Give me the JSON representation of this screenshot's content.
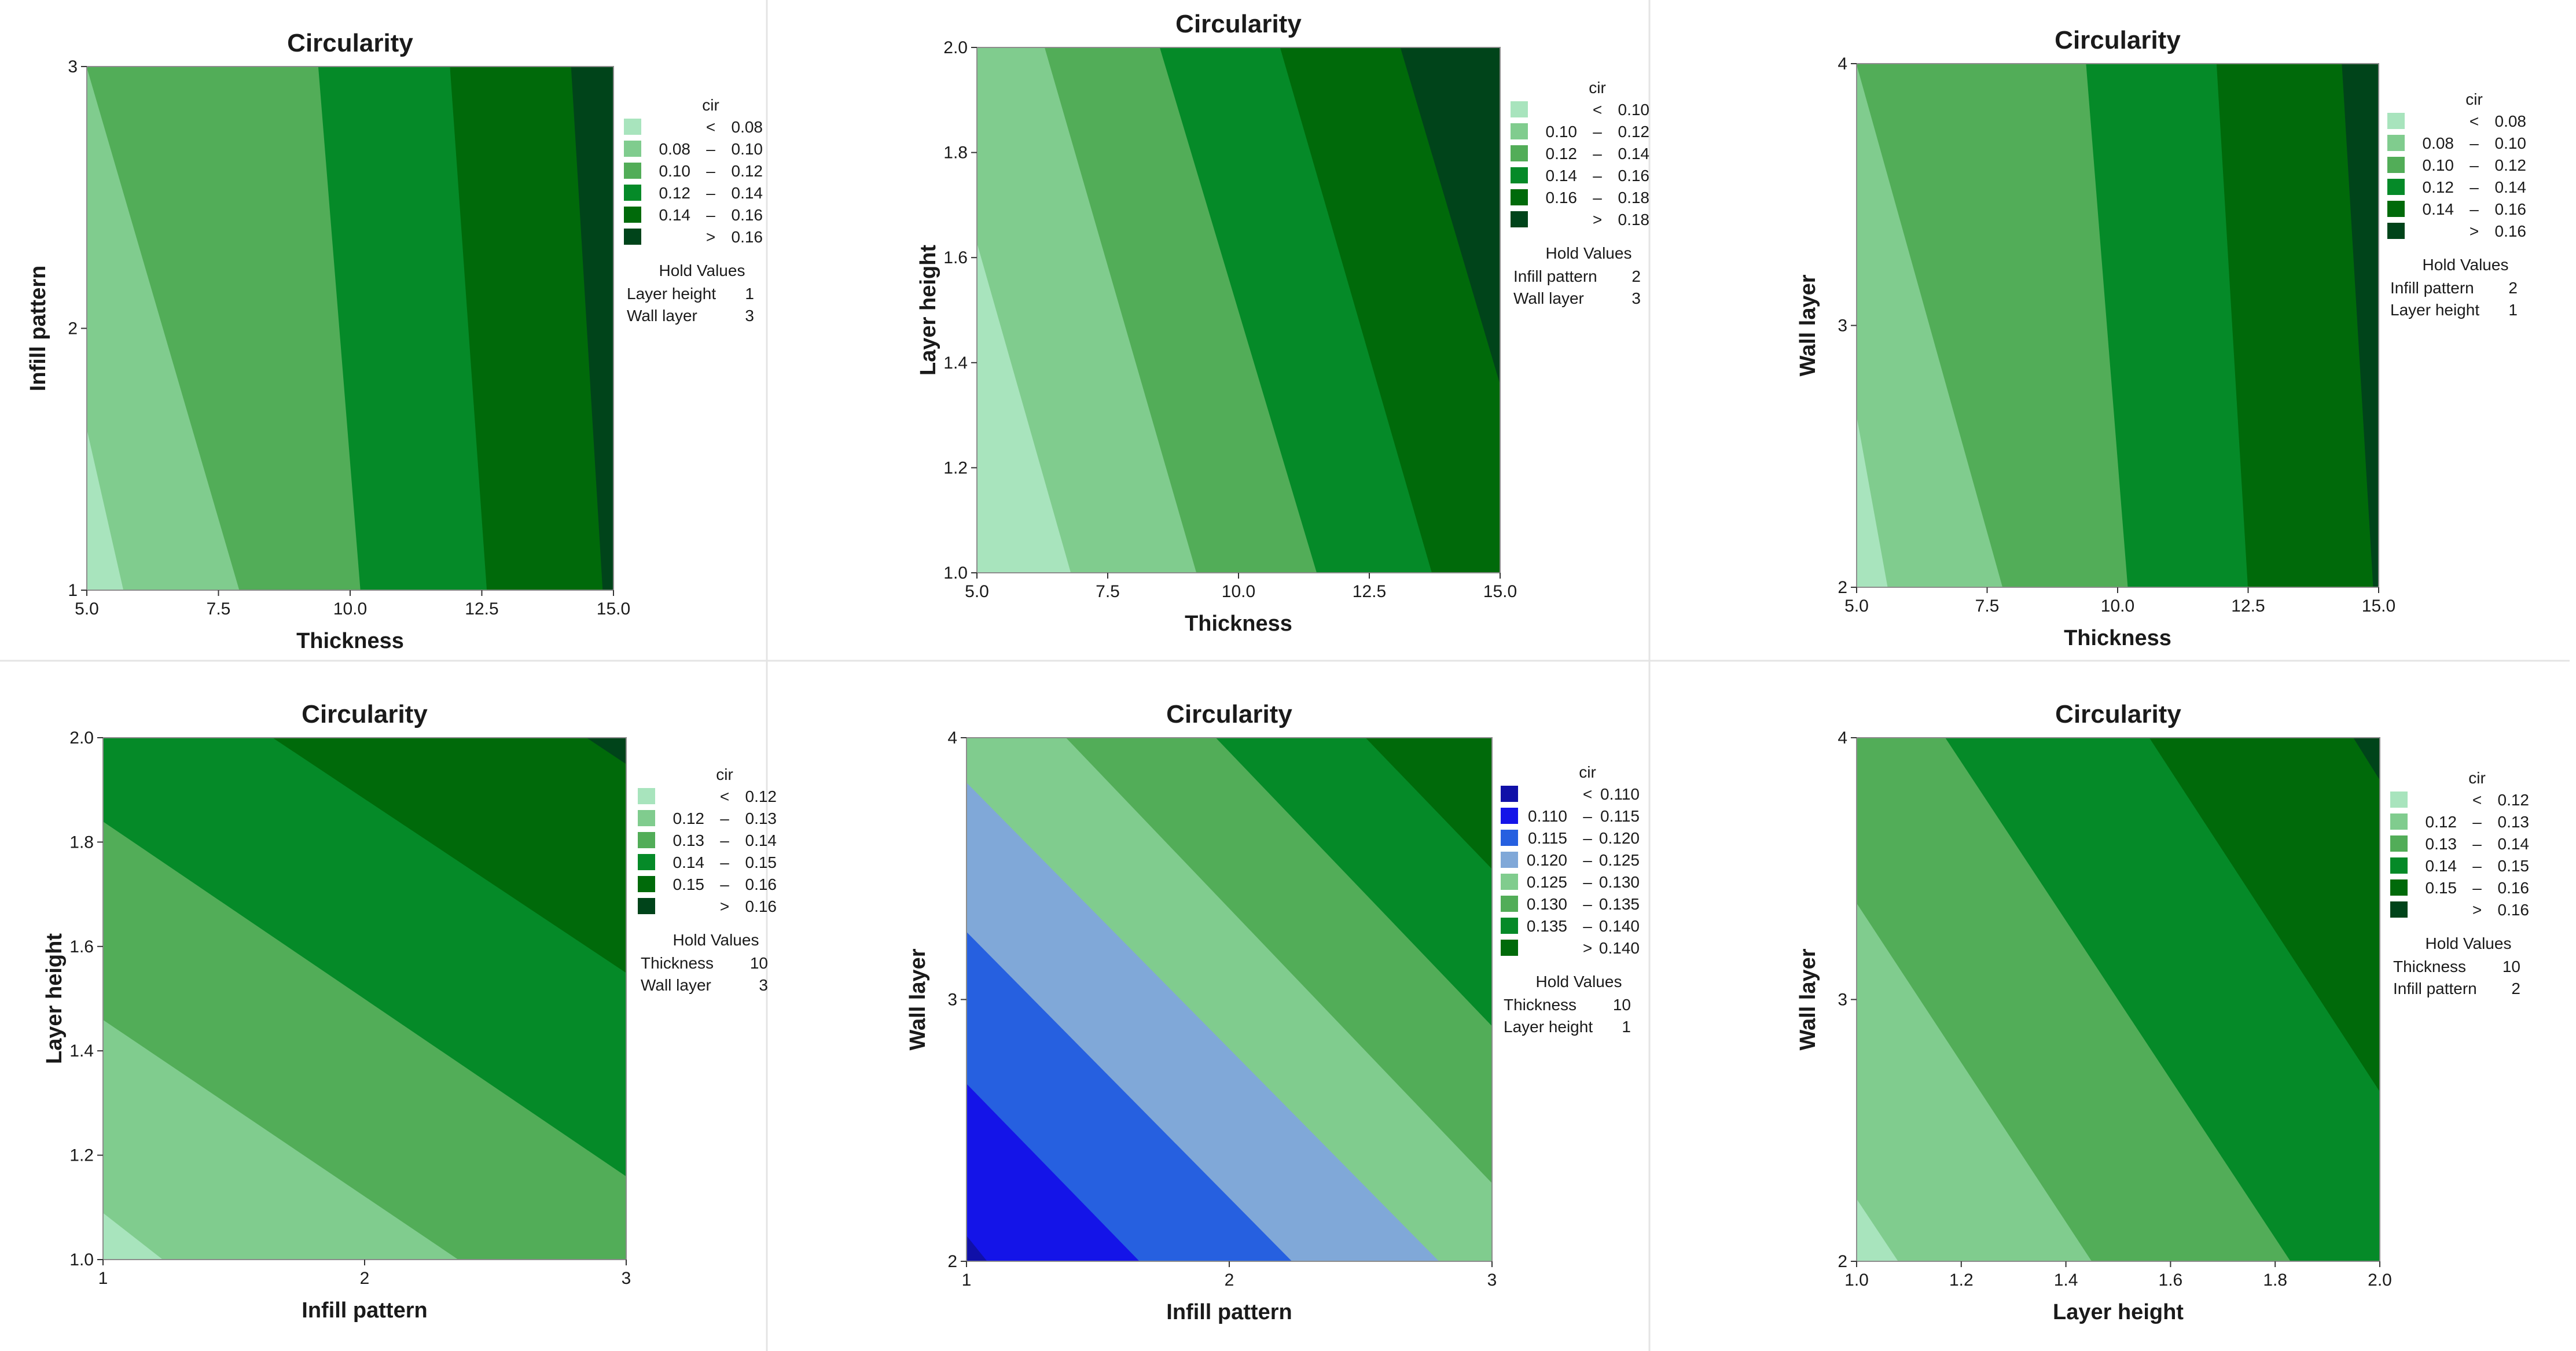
{
  "chart_data": [
    {
      "type": "contour",
      "title": "Circularity",
      "xlabel": "Thickness",
      "ylabel": "Infill pattern",
      "xlim": [
        5.0,
        15.0
      ],
      "ylim": [
        1,
        3
      ],
      "xticks": [
        "5.0",
        "7.5",
        "10.0",
        "12.5",
        "15.0"
      ],
      "yticks": [
        "1",
        "2",
        "3"
      ],
      "legend": {
        "title": "cir",
        "colors": [
          "#a8e4bd",
          "#80cc8e",
          "#52ad58",
          "#058a28",
          "#006a0a",
          "#00441a"
        ],
        "entries": [
          {
            "lo": "",
            "op": "<",
            "hi": "0.08"
          },
          {
            "lo": "0.08",
            "op": "–",
            "hi": "0.10"
          },
          {
            "lo": "0.10",
            "op": "–",
            "hi": "0.12"
          },
          {
            "lo": "0.12",
            "op": "–",
            "hi": "0.14"
          },
          {
            "lo": "0.14",
            "op": "–",
            "hi": "0.16"
          },
          {
            "lo": "",
            "op": ">",
            "hi": "0.16"
          }
        ]
      },
      "hold_title": "Hold Values",
      "hold_values": [
        {
          "name": "Layer height",
          "value": "1"
        },
        {
          "name": "Wall layer",
          "value": "3"
        }
      ],
      "boundaries": [
        [
          [
            5.0,
            1.62
          ],
          [
            5.7,
            1.0
          ]
        ],
        [
          [
            5.0,
            3.0
          ],
          [
            7.9,
            1.0
          ]
        ],
        [
          [
            9.4,
            3.0
          ],
          [
            10.2,
            1.0
          ]
        ],
        [
          [
            11.9,
            3.0
          ],
          [
            12.6,
            1.0
          ]
        ],
        [
          [
            14.2,
            3.0
          ],
          [
            14.8,
            1.0
          ]
        ]
      ]
    },
    {
      "type": "contour",
      "title": "Circularity",
      "xlabel": "Thickness",
      "ylabel": "Layer height",
      "xlim": [
        5.0,
        15.0
      ],
      "ylim": [
        1.0,
        2.0
      ],
      "xticks": [
        "5.0",
        "7.5",
        "10.0",
        "12.5",
        "15.0"
      ],
      "yticks": [
        "1.0",
        "1.2",
        "1.4",
        "1.6",
        "1.8",
        "2.0"
      ],
      "legend": {
        "title": "cir",
        "colors": [
          "#a8e4bd",
          "#80cc8e",
          "#52ad58",
          "#058a28",
          "#006a0a",
          "#00441a"
        ],
        "entries": [
          {
            "lo": "",
            "op": "<",
            "hi": "0.10"
          },
          {
            "lo": "0.10",
            "op": "–",
            "hi": "0.12"
          },
          {
            "lo": "0.12",
            "op": "–",
            "hi": "0.14"
          },
          {
            "lo": "0.14",
            "op": "–",
            "hi": "0.16"
          },
          {
            "lo": "0.16",
            "op": "–",
            "hi": "0.18"
          },
          {
            "lo": "",
            "op": ">",
            "hi": "0.18"
          }
        ]
      },
      "hold_title": "Hold Values",
      "hold_values": [
        {
          "name": "Infill pattern",
          "value": "2"
        },
        {
          "name": "Wall layer",
          "value": "3"
        }
      ],
      "boundaries": [
        [
          [
            5.0,
            1.63
          ],
          [
            6.8,
            1.0
          ]
        ],
        [
          [
            6.3,
            2.0
          ],
          [
            9.2,
            1.0
          ]
        ],
        [
          [
            8.5,
            2.0
          ],
          [
            11.5,
            1.0
          ]
        ],
        [
          [
            10.8,
            2.0
          ],
          [
            13.7,
            1.0
          ]
        ],
        [
          [
            13.1,
            2.0
          ],
          [
            15.0,
            1.36
          ]
        ]
      ]
    },
    {
      "type": "contour",
      "title": "Circularity",
      "xlabel": "Thickness",
      "ylabel": "Wall layer",
      "xlim": [
        5.0,
        15.0
      ],
      "ylim": [
        2,
        4
      ],
      "xticks": [
        "5.0",
        "7.5",
        "10.0",
        "12.5",
        "15.0"
      ],
      "yticks": [
        "2",
        "3",
        "4"
      ],
      "legend": {
        "title": "cir",
        "colors": [
          "#a8e4bd",
          "#80cc8e",
          "#52ad58",
          "#058a28",
          "#006a0a",
          "#00441a"
        ],
        "entries": [
          {
            "lo": "",
            "op": "<",
            "hi": "0.08"
          },
          {
            "lo": "0.08",
            "op": "–",
            "hi": "0.10"
          },
          {
            "lo": "0.10",
            "op": "–",
            "hi": "0.12"
          },
          {
            "lo": "0.12",
            "op": "–",
            "hi": "0.14"
          },
          {
            "lo": "0.14",
            "op": "–",
            "hi": "0.16"
          },
          {
            "lo": "",
            "op": ">",
            "hi": "0.16"
          }
        ]
      },
      "hold_title": "Hold Values",
      "hold_values": [
        {
          "name": "Infill pattern",
          "value": "2"
        },
        {
          "name": "Layer height",
          "value": "1"
        }
      ],
      "boundaries": [
        [
          [
            5.0,
            2.66
          ],
          [
            5.6,
            2.0
          ]
        ],
        [
          [
            5.0,
            4.0
          ],
          [
            7.8,
            2.0
          ]
        ],
        [
          [
            9.4,
            4.0
          ],
          [
            10.2,
            2.0
          ]
        ],
        [
          [
            11.9,
            4.0
          ],
          [
            12.5,
            2.0
          ]
        ],
        [
          [
            14.3,
            4.0
          ],
          [
            14.9,
            2.0
          ]
        ]
      ]
    },
    {
      "type": "contour",
      "title": "Circularity",
      "xlabel": "Infill pattern",
      "ylabel": "Layer height",
      "xlim": [
        1,
        3
      ],
      "ylim": [
        1.0,
        2.0
      ],
      "xticks": [
        "1",
        "2",
        "3"
      ],
      "yticks": [
        "1.0",
        "1.2",
        "1.4",
        "1.6",
        "1.8",
        "2.0"
      ],
      "legend": {
        "title": "cir",
        "colors": [
          "#a8e4bd",
          "#80cc8e",
          "#52ad58",
          "#058a28",
          "#006a0a",
          "#00441a"
        ],
        "entries": [
          {
            "lo": "",
            "op": "<",
            "hi": "0.12"
          },
          {
            "lo": "0.12",
            "op": "–",
            "hi": "0.13"
          },
          {
            "lo": "0.13",
            "op": "–",
            "hi": "0.14"
          },
          {
            "lo": "0.14",
            "op": "–",
            "hi": "0.15"
          },
          {
            "lo": "0.15",
            "op": "–",
            "hi": "0.16"
          },
          {
            "lo": "",
            "op": ">",
            "hi": "0.16"
          }
        ]
      },
      "hold_title": "Hold Values",
      "hold_values": [
        {
          "name": "Thickness",
          "value": "10"
        },
        {
          "name": "Wall layer",
          "value": "3"
        }
      ],
      "boundaries": [
        [
          [
            1.0,
            1.09
          ],
          [
            1.23,
            1.0
          ]
        ],
        [
          [
            1.0,
            1.46
          ],
          [
            2.36,
            1.0
          ]
        ],
        [
          [
            1.0,
            1.84
          ],
          [
            3.0,
            1.16
          ]
        ],
        [
          [
            1.65,
            2.0
          ],
          [
            3.0,
            1.55
          ]
        ],
        [
          [
            2.85,
            2.0
          ],
          [
            3.0,
            1.95
          ]
        ]
      ]
    },
    {
      "type": "contour",
      "title": "Circularity",
      "xlabel": "Infill pattern",
      "ylabel": "Wall layer",
      "xlim": [
        1,
        3
      ],
      "ylim": [
        2,
        4
      ],
      "xticks": [
        "1",
        "2",
        "3"
      ],
      "yticks": [
        "2",
        "3",
        "4"
      ],
      "legend": {
        "title": "cir",
        "colors": [
          "#1010a8",
          "#1414e8",
          "#2660e0",
          "#80a8d8",
          "#80cc8e",
          "#52ad58",
          "#058a28",
          "#006a0a"
        ],
        "entries": [
          {
            "lo": "",
            "op": "<",
            "hi": "0.110"
          },
          {
            "lo": "0.110",
            "op": "–",
            "hi": "0.115"
          },
          {
            "lo": "0.115",
            "op": "–",
            "hi": "0.120"
          },
          {
            "lo": "0.120",
            "op": "–",
            "hi": "0.125"
          },
          {
            "lo": "0.125",
            "op": "–",
            "hi": "0.130"
          },
          {
            "lo": "0.130",
            "op": "–",
            "hi": "0.135"
          },
          {
            "lo": "0.135",
            "op": "–",
            "hi": "0.140"
          },
          {
            "lo": "",
            "op": ">",
            "hi": "0.140"
          }
        ]
      },
      "hold_title": "Hold Values",
      "hold_values": [
        {
          "name": "Thickness",
          "value": "10"
        },
        {
          "name": "Layer height",
          "value": "1"
        }
      ],
      "boundaries": [
        [
          [
            1.0,
            2.1
          ],
          [
            1.08,
            2.0
          ]
        ],
        [
          [
            1.0,
            2.68
          ],
          [
            1.66,
            2.0
          ]
        ],
        [
          [
            1.0,
            3.26
          ],
          [
            2.24,
            2.0
          ]
        ],
        [
          [
            1.0,
            3.83
          ],
          [
            2.8,
            2.0
          ]
        ],
        [
          [
            1.38,
            4.0
          ],
          [
            3.0,
            2.3
          ]
        ],
        [
          [
            1.95,
            4.0
          ],
          [
            3.0,
            2.9
          ]
        ],
        [
          [
            2.52,
            4.0
          ],
          [
            3.0,
            3.5
          ]
        ]
      ]
    },
    {
      "type": "contour",
      "title": "Circularity",
      "xlabel": "Layer height",
      "ylabel": "Wall layer",
      "xlim": [
        1.0,
        2.0
      ],
      "ylim": [
        2,
        4
      ],
      "xticks": [
        "1.0",
        "1.2",
        "1.4",
        "1.6",
        "1.8",
        "2.0"
      ],
      "yticks": [
        "2",
        "3",
        "4"
      ],
      "legend": {
        "title": "cir",
        "colors": [
          "#a8e4bd",
          "#80cc8e",
          "#52ad58",
          "#058a28",
          "#006a0a",
          "#00441a"
        ],
        "entries": [
          {
            "lo": "",
            "op": "<",
            "hi": "0.12"
          },
          {
            "lo": "0.12",
            "op": "–",
            "hi": "0.13"
          },
          {
            "lo": "0.13",
            "op": "–",
            "hi": "0.14"
          },
          {
            "lo": "0.14",
            "op": "–",
            "hi": "0.15"
          },
          {
            "lo": "0.15",
            "op": "–",
            "hi": "0.16"
          },
          {
            "lo": "",
            "op": ">",
            "hi": "0.16"
          }
        ]
      },
      "hold_title": "Hold Values",
      "hold_values": [
        {
          "name": "Thickness",
          "value": "10"
        },
        {
          "name": "Infill pattern",
          "value": "2"
        }
      ],
      "boundaries": [
        [
          [
            1.0,
            2.24
          ],
          [
            1.08,
            2.0
          ]
        ],
        [
          [
            1.0,
            3.37
          ],
          [
            1.45,
            2.0
          ]
        ],
        [
          [
            1.17,
            4.0
          ],
          [
            1.83,
            2.0
          ]
        ],
        [
          [
            1.56,
            4.0
          ],
          [
            2.0,
            2.65
          ]
        ],
        [
          [
            1.95,
            4.0
          ],
          [
            2.0,
            3.84
          ]
        ]
      ]
    }
  ]
}
